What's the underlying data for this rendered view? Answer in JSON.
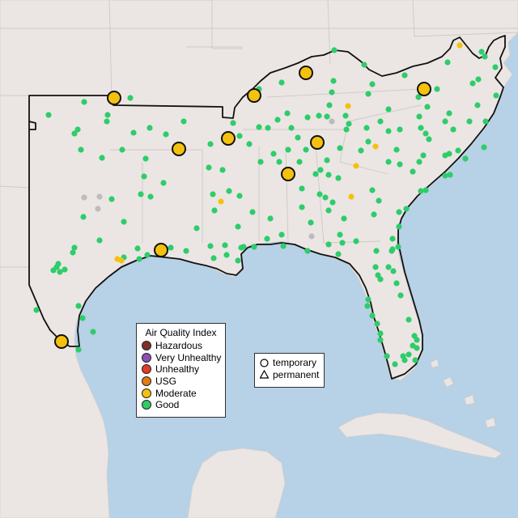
{
  "legend": {
    "title": "Air Quality Index",
    "items": [
      {
        "label": "Hazardous",
        "color": "#7e2f24"
      },
      {
        "label": "Very Unhealthy",
        "color": "#8e4fb4"
      },
      {
        "label": "Unhealthy",
        "color": "#e53a2a"
      },
      {
        "label": "USG",
        "color": "#e07b15"
      },
      {
        "label": "Moderate",
        "color": "#f5c10f"
      },
      {
        "label": "Good",
        "color": "#2ecc6b"
      }
    ]
  },
  "type_legend": {
    "items": [
      {
        "label": "temporary",
        "icon": "circle-icon"
      },
      {
        "label": "permanent",
        "icon": "triangle-icon"
      }
    ]
  },
  "colors": {
    "ocean": "#b7d1e6",
    "land": "#ebe6e3",
    "good": "#2ecc6b",
    "moderate": "#f5c10f",
    "no_data": "#bcbcbc"
  }
}
